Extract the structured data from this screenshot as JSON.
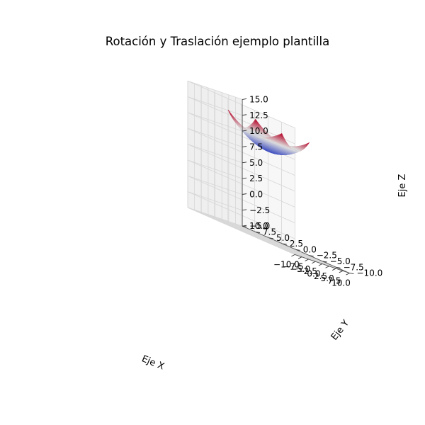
{
  "chart_data": {
    "type": "surface",
    "title": "Rotación y Traslación ejemplo plantilla",
    "xlabel": "Eje X",
    "ylabel": "Eje Y",
    "zlabel": "Eje Z",
    "xlim": [
      -10,
      10
    ],
    "ylim": [
      -10,
      10
    ],
    "zlim": [
      -5,
      15
    ],
    "x_ticks": [
      "−10.0",
      "−7.5",
      "−5.0",
      "−2.5",
      "0.0",
      "2.5",
      "5.0",
      "7.5",
      "10.0"
    ],
    "y_ticks": [
      "−10.0",
      "−7.5",
      "−5.0",
      "−2.5",
      "0.0",
      "2.5",
      "5.0",
      "7.5",
      "10.0"
    ],
    "z_ticks": [
      "−5.0",
      "−2.5",
      "0.0",
      "2.5",
      "5.0",
      "7.5",
      "10.0",
      "12.5",
      "15.0"
    ],
    "colormap": "coolwarm",
    "colormap_colors": [
      "#3b4cc0",
      "#dddddd",
      "#b40426"
    ],
    "grid": true,
    "surface": {
      "x_range": [
        -5,
        5
      ],
      "y_range": [
        -5,
        5
      ],
      "z_center": 9.0,
      "z_corner": 13.0
    }
  }
}
